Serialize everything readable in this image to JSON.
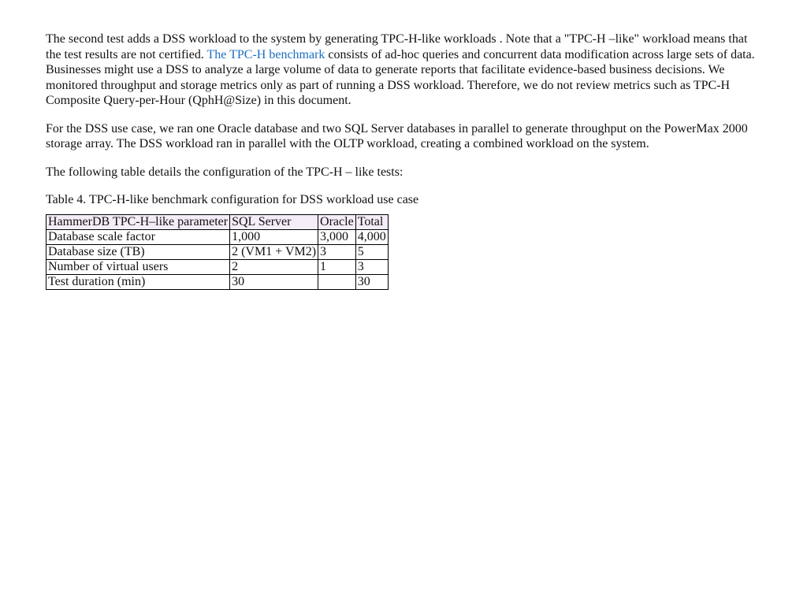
{
  "paragraphs": {
    "p1_a": "The second test adds a DSS workload to the system by generating TPC-H-like workloads . Note that a \"TPC-H –like\" workload means that the test results are not certified. ",
    "p1_link": "The TPC-H benchmark",
    "p1_b": " consists of ad-hoc queries and concurrent data modification across large sets of data. Businesses might use a DSS to analyze a large volume of data to generate reports that facilitate evidence-based business decisions. We monitored throughput and storage metrics only as part of running a DSS workload. Therefore, we do not review metrics such as TPC-H Composite Query-per-Hour (QphH@Size) in this document.",
    "p2": "For the DSS use case, we ran one Oracle database and two SQL Server databases in parallel to generate throughput on the PowerMax 2000 storage array. The DSS workload ran in parallel with the OLTP workload, creating a combined workload on the system.",
    "p3": "The following table details the configuration of the TPC-H – like tests:",
    "caption": "Table 4. TPC-H-like benchmark configuration for DSS workload use case"
  },
  "table": {
    "columns": [
      "HammerDB TPC-H–like parameter",
      "SQL Server",
      "Oracle",
      "Total"
    ],
    "rows": [
      [
        "Database scale factor",
        "1,000",
        "3,000",
        "4,000"
      ],
      [
        "Database size (TB)",
        "2 (VM1 + VM2)",
        "3",
        "5"
      ],
      [
        "Number of virtual users",
        "2",
        "1",
        "3"
      ],
      [
        "Test duration (min)",
        "30",
        "",
        "30"
      ]
    ],
    "header_bg": "#f4ecf7",
    "border_color": "#000000"
  },
  "link_color": "#1b6ec2",
  "text_color": "#111111",
  "background_color": "#ffffff"
}
